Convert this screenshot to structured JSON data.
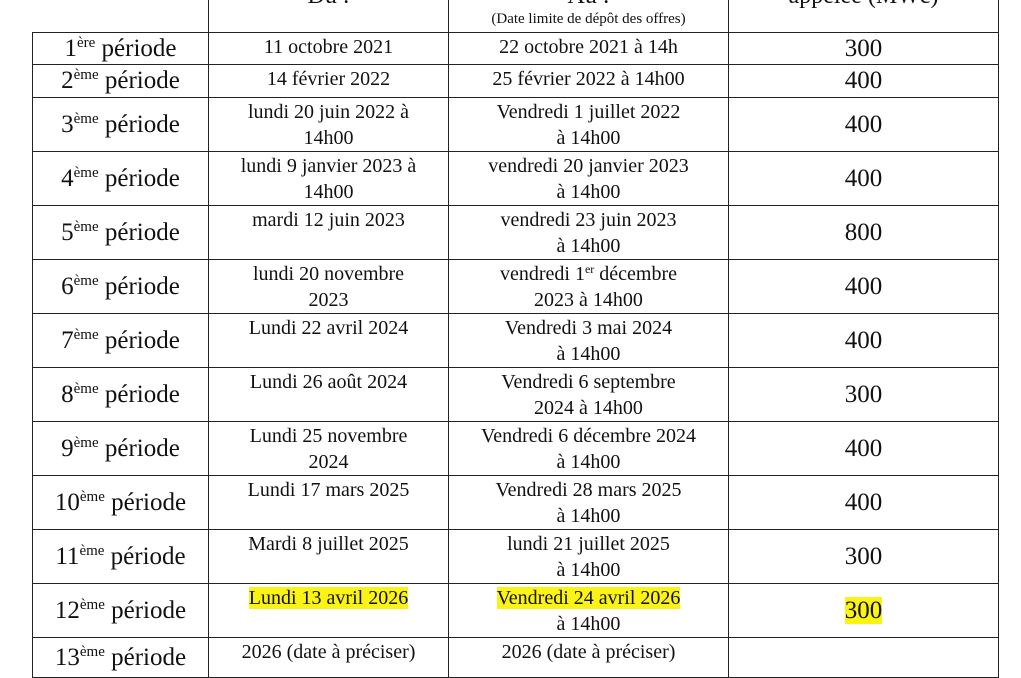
{
  "header": {
    "du_label": "Du :",
    "au_label": "Au :",
    "au_sublabel": "(Date limite de dépôt des offres)",
    "power_label": "appelée (MWc)"
  },
  "highlight_color": "#fbf315",
  "rows": [
    {
      "num": "1",
      "sup": "ère",
      "rest": " période",
      "du": [
        "11 octobre 2021"
      ],
      "au": [
        "22 octobre 2021 à 14h"
      ],
      "value": "300",
      "h": 32
    },
    {
      "num": "2",
      "sup": "ème",
      "rest": " période",
      "du": [
        "14 février 2022"
      ],
      "au": [
        "25 février 2022 à 14h00"
      ],
      "value": "400",
      "h": 33
    },
    {
      "num": "3",
      "sup": "ème",
      "rest": " période",
      "du": [
        "lundi 20 juin 2022 à",
        "14h00"
      ],
      "au": [
        "Vendredi 1 juillet 2022",
        "à 14h00"
      ],
      "value": "400",
      "h": 53
    },
    {
      "num": "4",
      "sup": "ème",
      "rest": " période",
      "du": [
        "lundi 9 janvier 2023 à",
        "14h00"
      ],
      "au": [
        "vendredi 20 janvier 2023",
        "à 14h00"
      ],
      "value": "400",
      "h": 53
    },
    {
      "num": "5",
      "sup": "ème",
      "rest": " période",
      "du": [
        "mardi 12 juin 2023"
      ],
      "au": [
        "vendredi 23 juin 2023",
        "à 14h00"
      ],
      "value": "800",
      "h": 53
    },
    {
      "num": "6",
      "sup": "ème",
      "rest": " période",
      "du": [
        "lundi 20 novembre",
        "2023"
      ],
      "au": [
        [
          "vendredi 1",
          "er",
          " décembre"
        ],
        "2023 à 14h00"
      ],
      "value": "400",
      "h": 54
    },
    {
      "num": "7",
      "sup": "ème",
      "rest": " période",
      "du": [
        "Lundi 22 avril 2024"
      ],
      "au": [
        "Vendredi 3 mai 2024",
        "à 14h00"
      ],
      "value": "400",
      "h": 53
    },
    {
      "num": "8",
      "sup": "ème",
      "rest": " période",
      "du": [
        "Lundi 26 août 2024"
      ],
      "au": [
        "Vendredi 6 septembre",
        "2024 à 14h00"
      ],
      "value": "300",
      "h": 53
    },
    {
      "num": "9",
      "sup": "ème",
      "rest": " période",
      "du": [
        "Lundi 25 novembre",
        "2024"
      ],
      "au": [
        "Vendredi 6 décembre 2024",
        "à 14h00"
      ],
      "value": "400",
      "h": 54
    },
    {
      "num": "10",
      "sup": "ème",
      "rest": " période",
      "du": [
        "Lundi 17 mars 2025"
      ],
      "au": [
        "Vendredi 28 mars 2025",
        "à 14h00"
      ],
      "value": "400",
      "h": 53
    },
    {
      "num": "11",
      "sup": "ème",
      "rest": " période",
      "du": [
        "Mardi 8 juillet 2025"
      ],
      "au": [
        "lundi 21 juillet 2025",
        "à 14h00"
      ],
      "value": "300",
      "h": 53
    },
    {
      "num": "12",
      "sup": "ème",
      "rest": " période",
      "du": [
        "Lundi 13 avril 2026"
      ],
      "au": [
        "Vendredi 24 avril 2026",
        "à 14h00"
      ],
      "value": "300",
      "h": 53,
      "highlight": {
        "du": [
          0
        ],
        "au": [
          0
        ],
        "value": true
      }
    },
    {
      "num": "13",
      "sup": "ème",
      "rest": " période",
      "du": [
        "2026 (date à préciser)"
      ],
      "au": [
        "2026 (date à préciser)"
      ],
      "value": "",
      "h": 40
    }
  ]
}
